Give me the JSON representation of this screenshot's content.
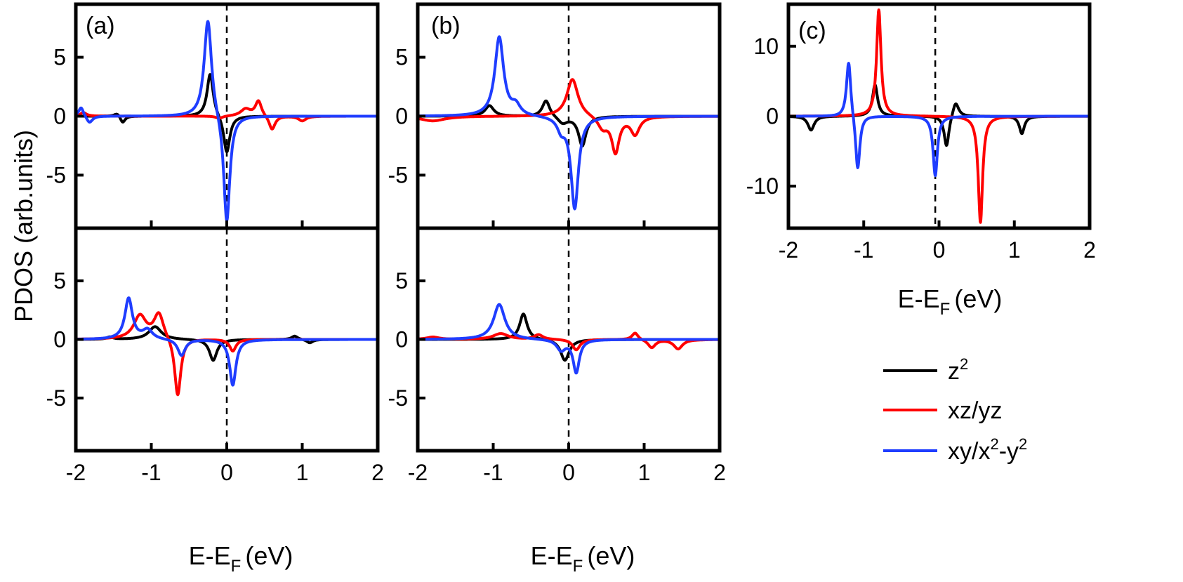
{
  "colors": {
    "z2": "#000000",
    "xz_yz": "#ff0000",
    "xy_x2y2": "#1f3dff"
  },
  "axis_titles": {
    "y": "PDOS (arb.units)",
    "x_main": "E-E",
    "x_sub": "F",
    "x_unit": "(eV)"
  },
  "legend": {
    "z2": {
      "base": "z",
      "sup": "2"
    },
    "xz_yz": {
      "text": "xz/yz"
    },
    "xy_x2y2": {
      "p1": "xy/x",
      "s1": "2",
      "p2": "-y",
      "s2": "2"
    }
  },
  "chart_data": [
    {
      "type": "line",
      "panel": "(a)",
      "sub": "top",
      "xlim": [
        -2,
        2
      ],
      "ylim": [
        -9.5,
        9.5
      ],
      "xticks": [
        -2,
        -1,
        0,
        1,
        2
      ],
      "yticks": [
        5,
        0,
        -5
      ],
      "ytick_labels": [
        "5",
        "0",
        "-5"
      ],
      "fermi_x": 0,
      "series": [
        {
          "key": "z2",
          "peaks": [
            [
              -1.45,
              0.3,
              0.05
            ],
            [
              -1.38,
              -0.6,
              0.04
            ],
            [
              -0.22,
              3.7,
              0.05
            ],
            [
              0.0,
              -3.2,
              0.05
            ]
          ]
        },
        {
          "key": "xz_yz",
          "peaks": [
            [
              -1.9,
              0.3,
              0.05
            ],
            [
              -0.1,
              -0.2,
              0.06
            ],
            [
              0.25,
              0.6,
              0.08
            ],
            [
              0.42,
              1.3,
              0.05
            ],
            [
              0.6,
              -1.2,
              0.05
            ],
            [
              1.0,
              -0.4,
              0.06
            ]
          ]
        },
        {
          "key": "xy_x2y2",
          "peaks": [
            [
              -1.93,
              0.8,
              0.04
            ],
            [
              -1.82,
              -0.6,
              0.05
            ],
            [
              -0.25,
              8.4,
              0.06
            ],
            [
              0.0,
              -9.3,
              0.05
            ]
          ]
        }
      ]
    },
    {
      "type": "line",
      "panel": "(a)",
      "sub": "bottom",
      "xlim": [
        -2,
        2
      ],
      "ylim": [
        -9.5,
        9.5
      ],
      "xticks": [
        -2,
        -1,
        0,
        1,
        2
      ],
      "xtick_labels": [
        "-2",
        "-1",
        "0",
        "1",
        "2"
      ],
      "yticks": [
        5,
        0,
        -5
      ],
      "ytick_labels": [
        "5",
        "0",
        "-5"
      ],
      "fermi_x": 0,
      "series": [
        {
          "key": "z2",
          "peaks": [
            [
              -1.55,
              0.2,
              0.05
            ],
            [
              -0.95,
              1.1,
              0.1
            ],
            [
              -0.18,
              -1.8,
              0.06
            ],
            [
              0.9,
              0.3,
              0.05
            ],
            [
              1.1,
              -0.3,
              0.05
            ]
          ]
        },
        {
          "key": "xz_yz",
          "peaks": [
            [
              -1.15,
              2.0,
              0.1
            ],
            [
              -0.9,
              2.2,
              0.08
            ],
            [
              -0.65,
              -5.0,
              0.05
            ],
            [
              0.08,
              -1.0,
              0.05
            ]
          ]
        },
        {
          "key": "xy_x2y2",
          "peaks": [
            [
              -1.3,
              3.5,
              0.06
            ],
            [
              -1.05,
              0.8,
              0.08
            ],
            [
              -0.6,
              -1.4,
              0.06
            ],
            [
              0.08,
              -3.9,
              0.05
            ]
          ]
        }
      ]
    },
    {
      "type": "line",
      "panel": "(b)",
      "sub": "top",
      "xlim": [
        -2,
        2
      ],
      "ylim": [
        -9.5,
        9.5
      ],
      "xticks": [
        -2,
        -1,
        0,
        1,
        2
      ],
      "yticks": [
        5,
        0,
        -5
      ],
      "ytick_labels": [
        "5",
        "0",
        "-5"
      ],
      "fermi_x": 0,
      "series": [
        {
          "key": "z2",
          "peaks": [
            [
              -1.05,
              0.9,
              0.07
            ],
            [
              -0.3,
              1.4,
              0.06
            ],
            [
              -0.08,
              -0.6,
              0.08
            ],
            [
              0.18,
              -2.5,
              0.06
            ]
          ]
        },
        {
          "key": "xz_yz",
          "peaks": [
            [
              -1.8,
              -0.4,
              0.2
            ],
            [
              0.05,
              3.2,
              0.09
            ],
            [
              0.45,
              -1.0,
              0.08
            ],
            [
              0.62,
              -3.0,
              0.06
            ],
            [
              0.88,
              -1.5,
              0.07
            ]
          ]
        },
        {
          "key": "xy_x2y2",
          "peaks": [
            [
              -0.92,
              6.7,
              0.07
            ],
            [
              -0.7,
              0.8,
              0.07
            ],
            [
              0.08,
              -7.8,
              0.06
            ],
            [
              -0.1,
              -1.0,
              0.06
            ]
          ]
        }
      ]
    },
    {
      "type": "line",
      "panel": "(b)",
      "sub": "bottom",
      "xlim": [
        -2,
        2
      ],
      "ylim": [
        -9.5,
        9.5
      ],
      "xticks": [
        -2,
        -1,
        0,
        1,
        2
      ],
      "xtick_labels": [
        "-2",
        "-1",
        "0",
        "1",
        "2"
      ],
      "yticks": [
        5,
        0,
        -5
      ],
      "ytick_labels": [
        "5",
        "0",
        "-5"
      ],
      "fermi_x": 0,
      "series": [
        {
          "key": "z2",
          "peaks": [
            [
              -0.6,
              2.2,
              0.06
            ],
            [
              -0.05,
              -1.8,
              0.07
            ]
          ]
        },
        {
          "key": "xz_yz",
          "peaks": [
            [
              -1.8,
              0.2,
              0.1
            ],
            [
              -0.9,
              0.5,
              0.12
            ],
            [
              -0.4,
              0.4,
              0.07
            ],
            [
              0.1,
              -0.9,
              0.06
            ],
            [
              0.88,
              0.6,
              0.05
            ],
            [
              1.1,
              -0.7,
              0.06
            ],
            [
              1.45,
              -0.8,
              0.07
            ]
          ]
        },
        {
          "key": "xy_x2y2",
          "peaks": [
            [
              -0.92,
              3.0,
              0.09
            ],
            [
              -0.1,
              -0.9,
              0.07
            ],
            [
              0.1,
              -2.8,
              0.05
            ]
          ]
        }
      ]
    },
    {
      "type": "line",
      "panel": "(c)",
      "xlim": [
        -2,
        2
      ],
      "ylim": [
        -16,
        16
      ],
      "xticks": [
        -2,
        -1,
        0,
        1,
        2
      ],
      "xtick_labels": [
        "-2",
        "-1",
        "0",
        "1",
        "2"
      ],
      "yticks": [
        10,
        0,
        -10
      ],
      "ytick_labels": [
        "10",
        "0",
        "-10"
      ],
      "fermi_x": -0.05,
      "series": [
        {
          "key": "z2",
          "peaks": [
            [
              -1.7,
              -2.0,
              0.05
            ],
            [
              -0.85,
              4.5,
              0.04
            ],
            [
              0.1,
              -4.5,
              0.04
            ],
            [
              0.22,
              2.2,
              0.05
            ],
            [
              1.1,
              -2.5,
              0.04
            ]
          ]
        },
        {
          "key": "xz_yz",
          "peaks": [
            [
              -0.8,
              15.2,
              0.035
            ],
            [
              0.55,
              -15.2,
              0.035
            ]
          ]
        },
        {
          "key": "xy_x2y2",
          "peaks": [
            [
              -1.2,
              8.2,
              0.035
            ],
            [
              -1.08,
              -8.0,
              0.035
            ],
            [
              -0.05,
              -8.5,
              0.035
            ]
          ]
        }
      ]
    }
  ]
}
